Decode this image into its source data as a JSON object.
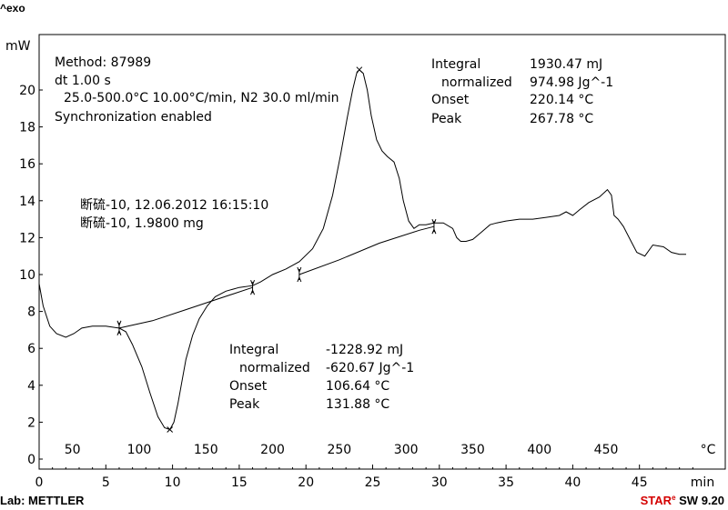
{
  "header": {
    "exo_label": "^exo"
  },
  "footer": {
    "lab": "Lab: METTLER",
    "star": "STAR",
    "reg": "e",
    "sw": "SW 9.20"
  },
  "chart_data": {
    "type": "line",
    "title": "",
    "ylabel": "mW",
    "xlabel_time": "min",
    "xlabel_temp": "°C",
    "ylim": [
      -0.5,
      23
    ],
    "xlim_min": [
      0,
      49
    ],
    "yticks": [
      0,
      2,
      4,
      6,
      8,
      10,
      12,
      14,
      16,
      18,
      20
    ],
    "time_ticks": [
      0,
      5,
      10,
      15,
      20,
      25,
      30,
      35,
      40,
      45
    ],
    "temp_ticks": [
      50,
      100,
      150,
      200,
      250,
      300,
      350,
      400,
      450
    ],
    "info_lines": [
      "Method: 87989",
      "dt 1.00 s",
      "  25.0-500.0°C 10.00°C/min, N2 30.0 ml/min",
      "Synchronization enabled"
    ],
    "sample_lines": [
      "断硫-10, 12.06.2012 16:15:10",
      "断硫-10, 1.9800 mg"
    ],
    "exo_peak": {
      "integral_label": "Integral",
      "integral": "1930.47 mJ",
      "normalized_label": "  normalized",
      "normalized": "974.98 Jg^-1",
      "onset_label": "Onset",
      "onset": "220.14 °C",
      "peak_label": "Peak",
      "peak": "267.78 °C"
    },
    "endo_peak": {
      "integral_label": "Integral",
      "integral": "-1228.92 mJ",
      "normalized_label": "  normalized",
      "normalized": "-620.67 Jg^-1",
      "onset_label": "Onset",
      "onset": "106.64 °C",
      "peak_label": "Peak",
      "peak": "131.88 °C"
    },
    "series": [
      {
        "x": [
          0,
          0.3,
          0.8,
          1.3,
          2.0,
          2.6,
          3.2,
          4.0,
          5.0,
          6.0,
          6.5,
          7.0,
          7.7,
          8.3,
          8.9,
          9.4,
          9.8,
          10.1,
          10.4,
          10.7,
          11.0,
          11.5,
          12.0,
          12.6,
          13.2,
          14.0,
          15.0,
          16.0,
          16.6,
          17.5,
          18.5,
          19.5,
          20.5,
          21.3,
          22.0,
          22.6,
          23.1,
          23.5,
          23.8,
          24.0,
          24.3,
          24.6,
          24.9,
          25.3,
          25.7,
          26.1,
          26.6,
          27.0,
          27.3,
          27.7,
          28.1,
          28.5,
          29.0,
          29.6,
          30.3,
          31.0,
          31.3,
          31.6,
          32.0,
          32.5,
          33.0,
          33.8,
          34.3,
          35.0,
          36.0,
          37.0,
          38.0,
          39.0,
          39.5,
          40.0,
          40.5,
          41.2,
          42.0,
          42.6,
          42.9,
          43.1,
          43.4,
          43.8,
          44.3,
          44.8,
          45.4,
          46.0,
          46.8,
          47.4,
          48.0,
          48.5
        ],
        "y": [
          9.5,
          8.3,
          7.2,
          6.8,
          6.6,
          6.8,
          7.1,
          7.2,
          7.2,
          7.1,
          6.9,
          6.2,
          5.0,
          3.6,
          2.3,
          1.7,
          1.6,
          2.0,
          3.0,
          4.2,
          5.4,
          6.7,
          7.6,
          8.3,
          8.8,
          9.1,
          9.3,
          9.4,
          9.6,
          10.0,
          10.3,
          10.7,
          11.4,
          12.5,
          14.3,
          16.5,
          18.5,
          20.0,
          20.9,
          21.1,
          20.9,
          20.0,
          18.6,
          17.3,
          16.7,
          16.4,
          16.1,
          15.2,
          14.0,
          12.9,
          12.5,
          12.7,
          12.7,
          12.8,
          12.8,
          12.5,
          12.0,
          11.8,
          11.8,
          11.9,
          12.2,
          12.7,
          12.8,
          12.9,
          13.0,
          13.0,
          13.1,
          13.2,
          13.4,
          13.2,
          13.5,
          13.9,
          14.2,
          14.6,
          14.3,
          13.2,
          13.0,
          12.6,
          11.9,
          11.2,
          11.0,
          11.6,
          11.5,
          11.2,
          11.1,
          11.1
        ]
      },
      {
        "x": [
          6.0,
          8.5,
          11.0,
          13.5,
          16.0
        ],
        "y": [
          7.1,
          7.5,
          8.1,
          8.7,
          9.3
        ]
      },
      {
        "x": [
          19.5,
          22.5,
          25.5,
          28.5,
          29.6
        ],
        "y": [
          10.0,
          10.8,
          11.7,
          12.4,
          12.6
        ]
      }
    ],
    "markers": [
      {
        "x": 6.0,
        "y": 7.1
      },
      {
        "x": 16.0,
        "y": 9.3
      },
      {
        "x": 19.5,
        "y": 10.0
      },
      {
        "x": 29.6,
        "y": 12.6
      }
    ],
    "peak_x_marks": [
      {
        "x": 9.8,
        "y": 1.6
      },
      {
        "x": 24.0,
        "y": 21.1
      }
    ]
  }
}
